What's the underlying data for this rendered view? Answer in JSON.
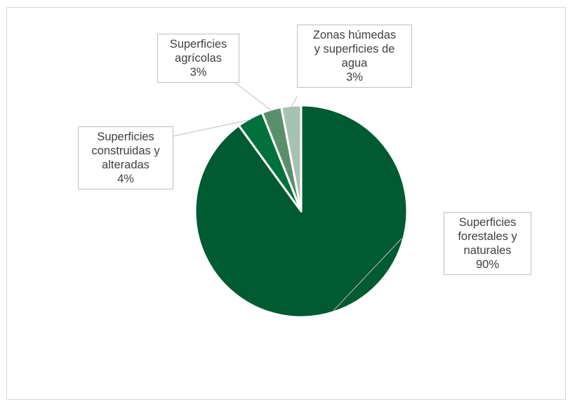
{
  "chart_data": {
    "type": "pie",
    "title": "",
    "unit": "%",
    "slices": [
      {
        "label": "Superficies forestales y naturales",
        "label_lines": [
          "Superficies",
          "forestales y",
          "naturales"
        ],
        "value": 90,
        "value_label": "90%",
        "color": "#005a32"
      },
      {
        "label": "Superficies construidas y alteradas",
        "label_lines": [
          "Superficies",
          "construidas y",
          "alteradas"
        ],
        "value": 4,
        "value_label": "4%",
        "color": "#00703c"
      },
      {
        "label": "Superficies agrícolas",
        "label_lines": [
          "Superficies",
          "agrícolas"
        ],
        "value": 3,
        "value_label": "3%",
        "color": "#5a8f6e"
      },
      {
        "label": "Zonas húmedas y superficies de agua",
        "label_lines": [
          "Zonas húmedas",
          "y superficies de",
          "agua"
        ],
        "value": 3,
        "value_label": "3%",
        "color": "#a8c2b2"
      }
    ],
    "legend": "none",
    "data_labels": "callout"
  }
}
